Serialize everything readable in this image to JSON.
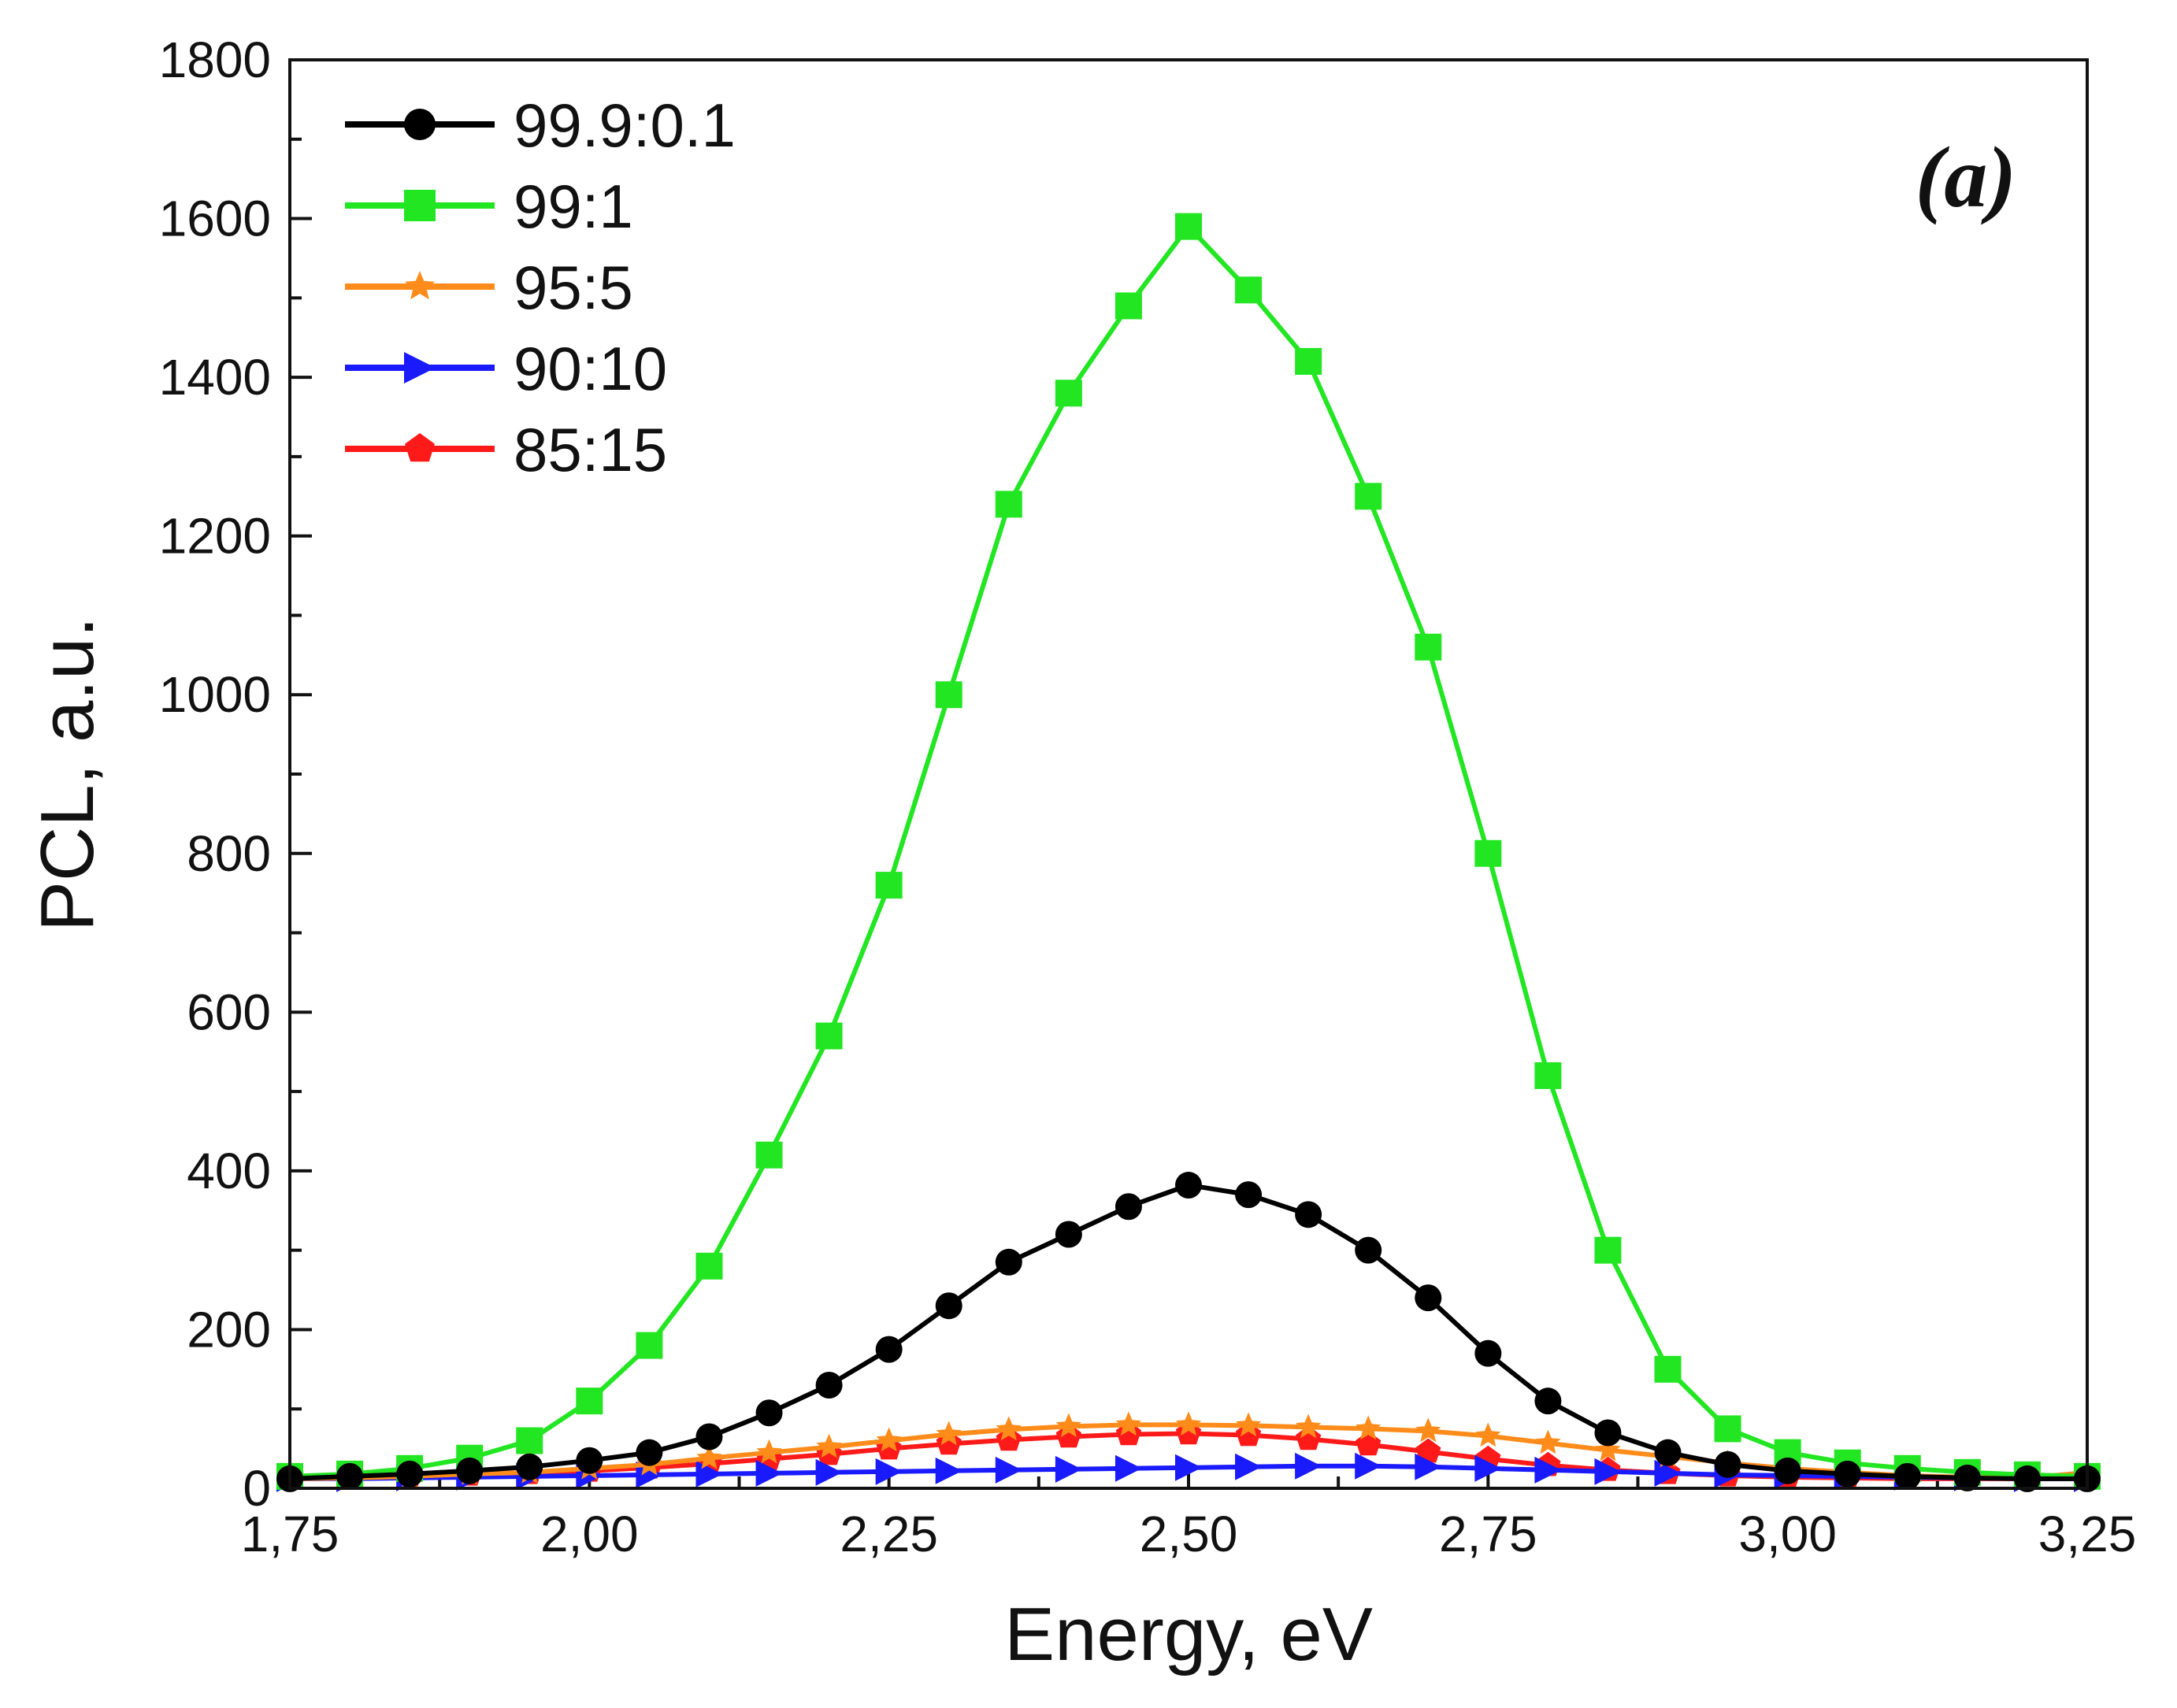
{
  "chart_data": {
    "type": "line",
    "title": "",
    "panel_label": "(a)",
    "xlabel": "Energy, eV",
    "ylabel": "PCL, a.u.",
    "xlim": [
      1.75,
      3.25
    ],
    "ylim": [
      0,
      1800
    ],
    "x_ticks": [
      1.75,
      2.0,
      2.25,
      2.5,
      2.75,
      3.0,
      3.25
    ],
    "x_tick_labels": [
      "1,75",
      "2,00",
      "2,25",
      "2,50",
      "2,75",
      "3,00",
      "3,25"
    ],
    "y_ticks": [
      0,
      200,
      400,
      600,
      800,
      1000,
      1200,
      1400,
      1600,
      1800
    ],
    "y_tick_labels": [
      "0",
      "200",
      "400",
      "600",
      "800",
      "1000",
      "1200",
      "1400",
      "1600",
      "1800"
    ],
    "legend_position": "top-left",
    "series": [
      {
        "name": "99.9:0.1",
        "color": "#000000",
        "marker": "circle",
        "x": [
          1.75,
          1.8,
          1.85,
          1.9,
          1.95,
          2.0,
          2.05,
          2.1,
          2.15,
          2.2,
          2.25,
          2.3,
          2.35,
          2.4,
          2.45,
          2.5,
          2.55,
          2.6,
          2.65,
          2.7,
          2.75,
          2.8,
          2.85,
          2.9,
          2.95,
          3.0,
          3.05,
          3.1,
          3.15,
          3.2,
          3.25
        ],
        "y": [
          12,
          15,
          18,
          22,
          27,
          35,
          45,
          65,
          95,
          130,
          175,
          230,
          285,
          320,
          355,
          382,
          370,
          345,
          300,
          240,
          170,
          110,
          70,
          45,
          30,
          22,
          18,
          15,
          13,
          12,
          12
        ]
      },
      {
        "name": "99:1",
        "color": "#22e622",
        "marker": "square",
        "x": [
          1.75,
          1.8,
          1.85,
          1.9,
          1.95,
          2.0,
          2.05,
          2.1,
          2.15,
          2.2,
          2.25,
          2.3,
          2.35,
          2.4,
          2.45,
          2.5,
          2.55,
          2.6,
          2.65,
          2.7,
          2.75,
          2.8,
          2.85,
          2.9,
          2.95,
          3.0,
          3.05,
          3.1,
          3.15,
          3.2,
          3.25
        ],
        "y": [
          15,
          18,
          25,
          38,
          60,
          110,
          180,
          280,
          420,
          570,
          760,
          1000,
          1240,
          1380,
          1490,
          1590,
          1510,
          1420,
          1250,
          1060,
          800,
          520,
          300,
          150,
          75,
          45,
          32,
          25,
          20,
          17,
          15
        ]
      },
      {
        "name": "95:5",
        "color": "#ff8c1a",
        "marker": "star",
        "x": [
          1.75,
          1.8,
          1.85,
          1.9,
          1.95,
          2.0,
          2.05,
          2.1,
          2.15,
          2.2,
          2.25,
          2.3,
          2.35,
          2.4,
          2.45,
          2.5,
          2.55,
          2.6,
          2.65,
          2.7,
          2.75,
          2.8,
          2.85,
          2.9,
          2.95,
          3.0,
          3.05,
          3.1,
          3.15,
          3.2,
          3.25
        ],
        "y": [
          12,
          13,
          15,
          18,
          20,
          25,
          30,
          38,
          45,
          52,
          60,
          68,
          74,
          78,
          80,
          80,
          79,
          77,
          75,
          72,
          66,
          57,
          48,
          40,
          32,
          25,
          20,
          16,
          14,
          13,
          20
        ]
      },
      {
        "name": "90:10",
        "color": "#1a1aff",
        "marker": "triangle-right",
        "x": [
          1.75,
          1.8,
          1.85,
          1.9,
          1.95,
          2.0,
          2.05,
          2.1,
          2.15,
          2.2,
          2.25,
          2.3,
          2.35,
          2.4,
          2.45,
          2.5,
          2.55,
          2.6,
          2.65,
          2.7,
          2.75,
          2.8,
          2.85,
          2.9,
          2.95,
          3.0,
          3.05,
          3.1,
          3.15,
          3.2,
          3.25
        ],
        "y": [
          12,
          12,
          13,
          14,
          15,
          16,
          17,
          18,
          19,
          20,
          21,
          22,
          23,
          24,
          25,
          26,
          27,
          28,
          28,
          27,
          25,
          23,
          21,
          19,
          17,
          16,
          15,
          14,
          13,
          12,
          12
        ]
      },
      {
        "name": "85:15",
        "color": "#ff1a1a",
        "marker": "pentagon",
        "x": [
          1.75,
          1.8,
          1.85,
          1.9,
          1.95,
          2.0,
          2.05,
          2.1,
          2.15,
          2.2,
          2.25,
          2.3,
          2.35,
          2.4,
          2.45,
          2.5,
          2.55,
          2.6,
          2.65,
          2.7,
          2.75,
          2.8,
          2.85,
          2.9,
          2.95,
          3.0,
          3.05,
          3.1,
          3.15,
          3.2,
          3.25
        ],
        "y": [
          12,
          13,
          15,
          17,
          19,
          22,
          26,
          31,
          37,
          43,
          50,
          56,
          61,
          65,
          68,
          69,
          67,
          62,
          55,
          46,
          37,
          29,
          23,
          19,
          16,
          14,
          13,
          12,
          12,
          12,
          12
        ]
      }
    ]
  }
}
